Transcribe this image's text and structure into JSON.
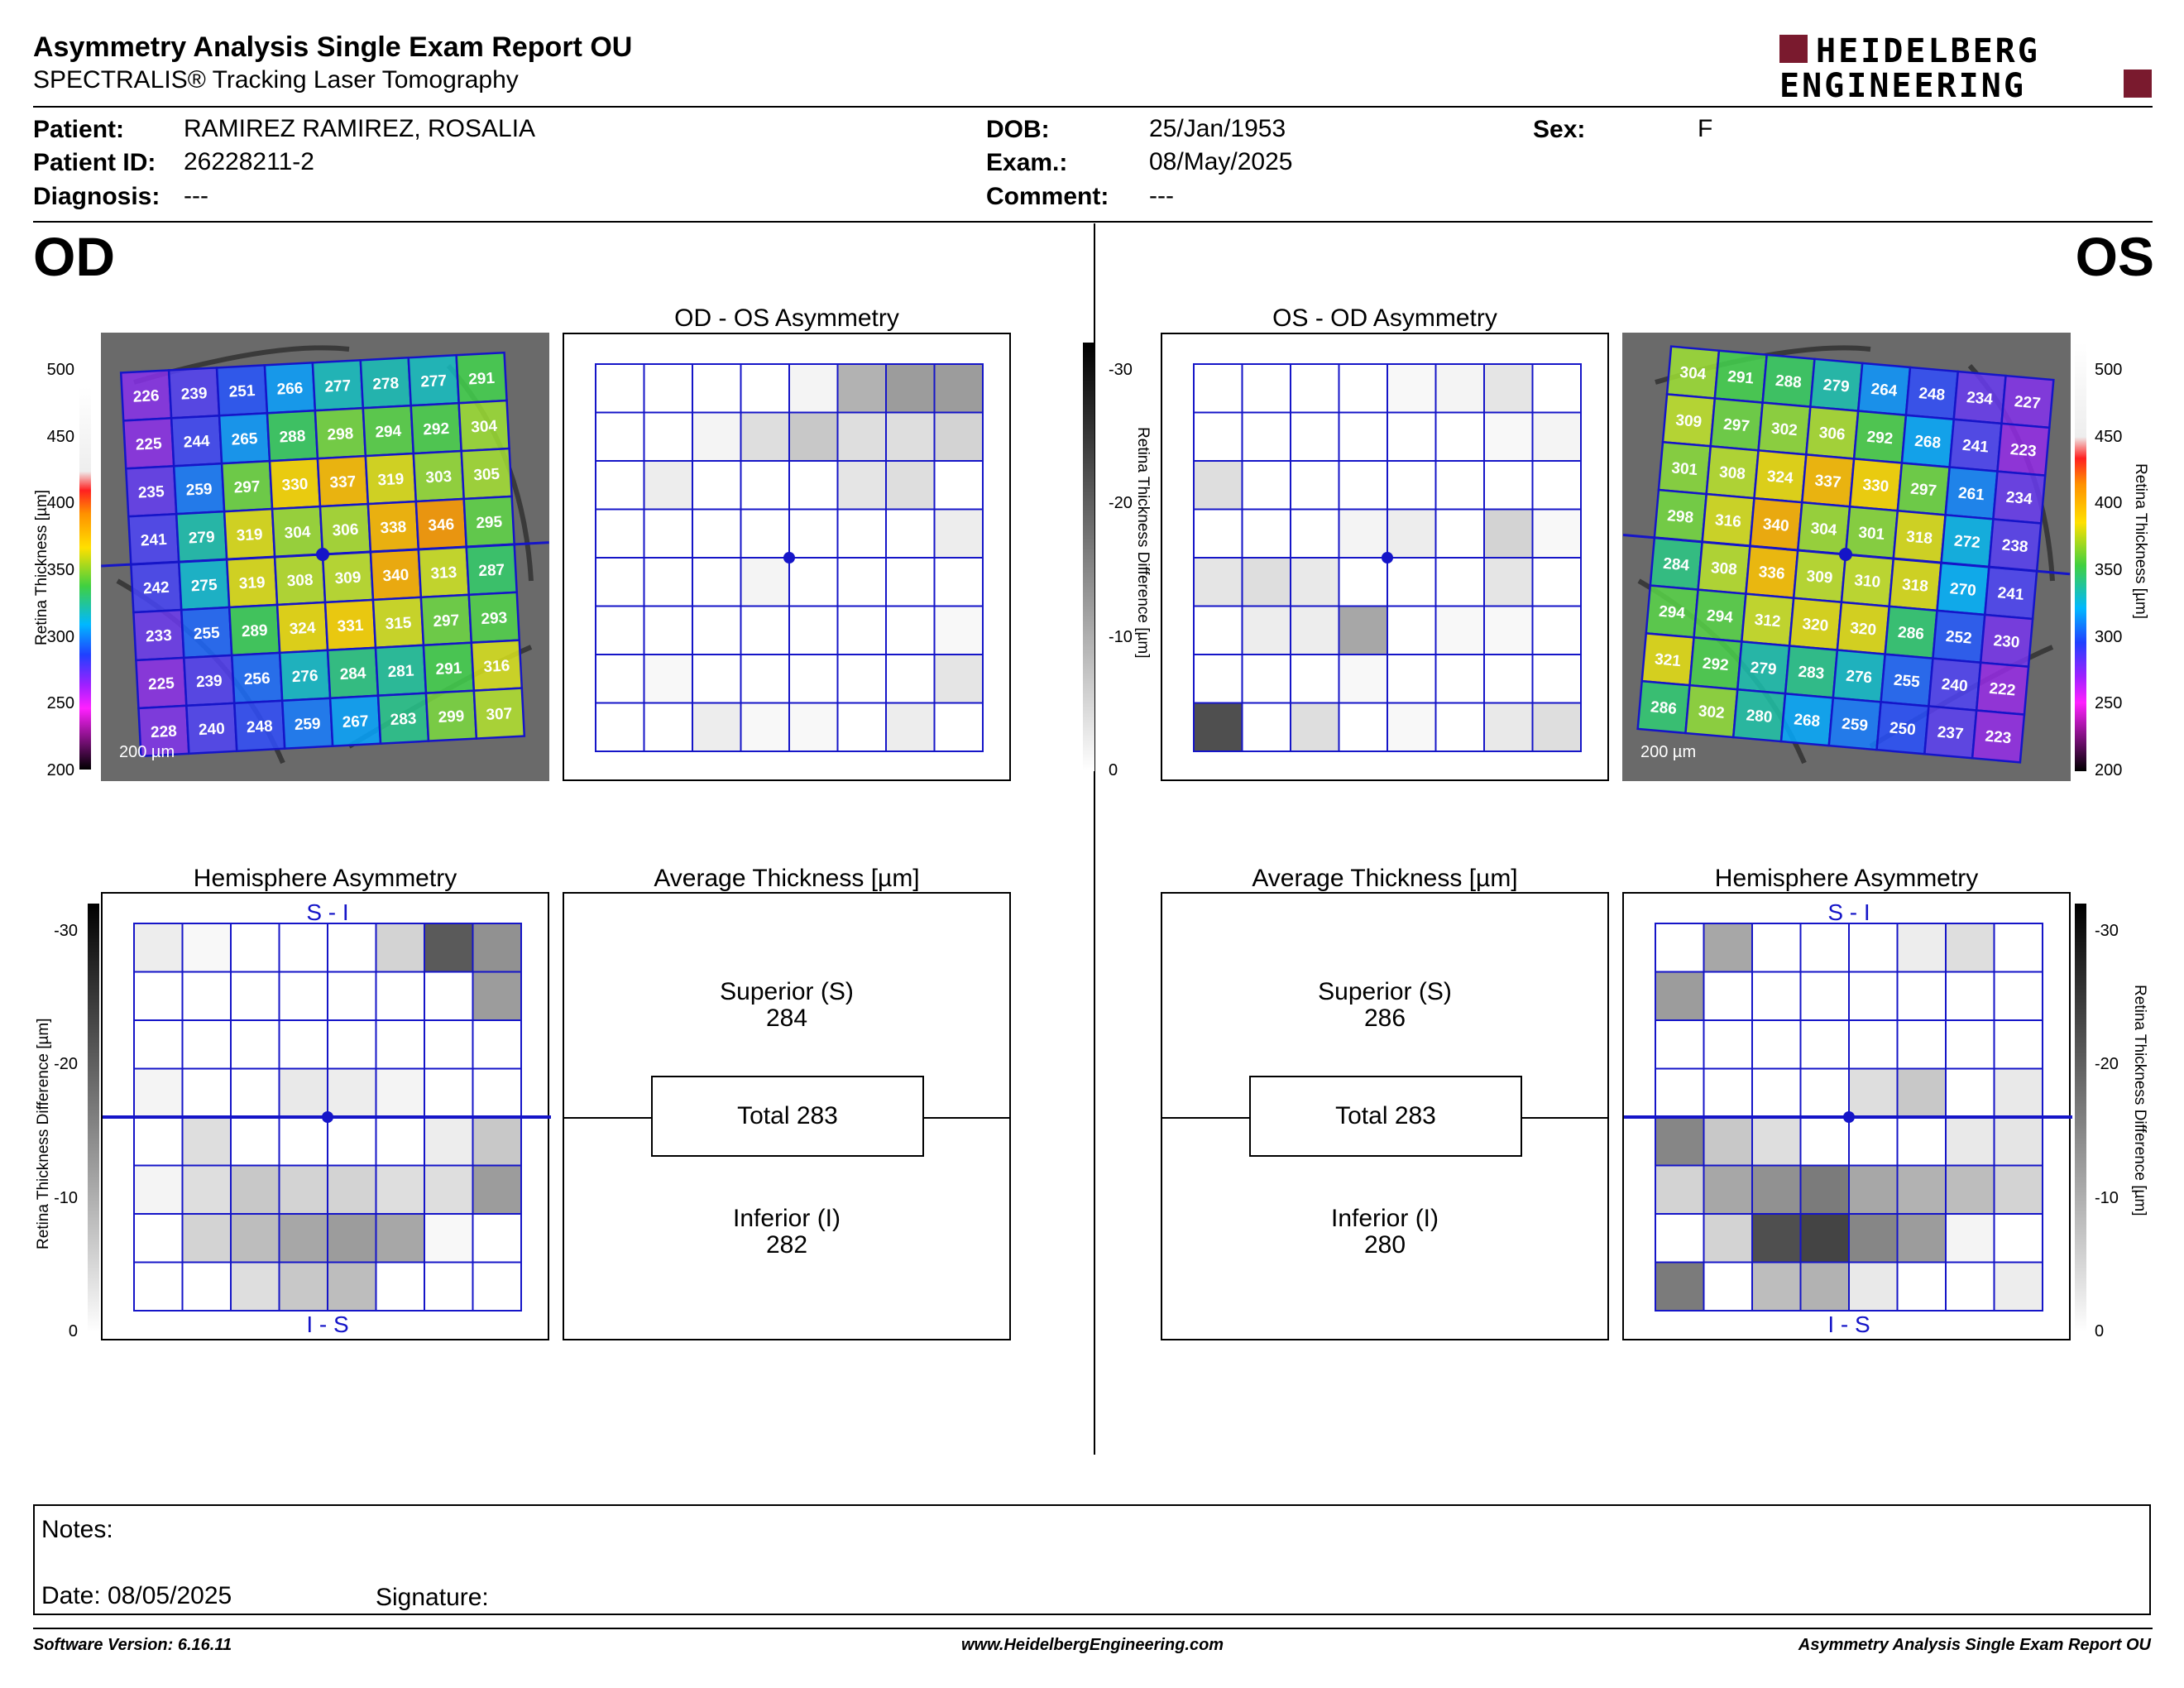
{
  "header": {
    "title": "Asymmetry Analysis Single Exam Report OU",
    "subtitle": "SPECTRALIS® Tracking Laser Tomography",
    "logo_line1": "HEIDELBERG",
    "logo_line2": "ENGINEERING"
  },
  "patient": {
    "patient_label": "Patient:",
    "patient_value": "RAMIREZ RAMIREZ, ROSALIA",
    "id_label": "Patient ID:",
    "id_value": "26228211-2",
    "diagnosis_label": "Diagnosis:",
    "diagnosis_value": "---",
    "dob_label": "DOB:",
    "dob_value": "25/Jan/1953",
    "exam_label": "Exam.:",
    "exam_value": "08/May/2025",
    "comment_label": "Comment:",
    "comment_value": "---",
    "sex_label": "Sex:",
    "sex_value": "F"
  },
  "eyes": {
    "left": "OD",
    "right": "OS"
  },
  "titles": {
    "od_os": "OD - OS Asymmetry",
    "os_od": "OS - OD Asymmetry",
    "hemi": "Hemisphere Asymmetry",
    "avg": "Average Thickness [µm]",
    "si": "S - I",
    "is": "I - S",
    "scale": "200 µm"
  },
  "axes": {
    "thickness_label": "Retina  Thickness [µm]",
    "diff_label": "Retina Thickness Difference [µm]",
    "thickness_ticks": [
      "500",
      "450",
      "400",
      "350",
      "300",
      "250",
      "200"
    ],
    "diff_ticks": [
      "-30",
      "-20",
      "-10",
      "0"
    ]
  },
  "od": {
    "thickness": [
      [
        226,
        239,
        251,
        266,
        277,
        278,
        277,
        291
      ],
      [
        225,
        244,
        265,
        288,
        298,
        294,
        292,
        304
      ],
      [
        235,
        259,
        297,
        330,
        337,
        319,
        303,
        305
      ],
      [
        241,
        279,
        319,
        304,
        306,
        338,
        346,
        295
      ],
      [
        242,
        275,
        319,
        308,
        309,
        340,
        313,
        287
      ],
      [
        233,
        255,
        289,
        324,
        331,
        315,
        297,
        293
      ],
      [
        225,
        239,
        256,
        276,
        284,
        281,
        291,
        316
      ],
      [
        228,
        240,
        248,
        259,
        267,
        283,
        299,
        307
      ]
    ],
    "asym_shades": [
      [
        0,
        0,
        0,
        0,
        0.05,
        0.35,
        0.45,
        0.45
      ],
      [
        0,
        0,
        0.05,
        0.15,
        0.25,
        0.15,
        0.15,
        0.2
      ],
      [
        0,
        0.08,
        0,
        0,
        0,
        0.12,
        0.15,
        0
      ],
      [
        0,
        0,
        0,
        0,
        0,
        0,
        0,
        0.08
      ],
      [
        0,
        0,
        0,
        0.05,
        0,
        0,
        0,
        0
      ],
      [
        0,
        0,
        0,
        0,
        0,
        0,
        0,
        0.03
      ],
      [
        0,
        0.03,
        0,
        0,
        0,
        0,
        0,
        0.12
      ],
      [
        0,
        0,
        0.08,
        0.03,
        0.03,
        0,
        0.08,
        0
      ]
    ],
    "hemi_shades": [
      [
        0.08,
        0.03,
        0,
        0,
        0,
        0.2,
        0.75,
        0.5
      ],
      [
        0,
        0,
        0,
        0,
        0,
        0,
        0,
        0.45
      ],
      [
        0,
        0,
        0,
        0,
        0,
        0,
        0,
        0
      ],
      [
        0.05,
        0,
        0,
        0.1,
        0.08,
        0.05,
        0,
        0
      ],
      [
        0,
        0.15,
        0,
        0,
        0,
        0,
        0.08,
        0.25
      ],
      [
        0.05,
        0.15,
        0.25,
        0.2,
        0.2,
        0.15,
        0.15,
        0.45
      ],
      [
        0,
        0.2,
        0.3,
        0.4,
        0.45,
        0.4,
        0.03,
        0
      ],
      [
        0,
        0,
        0.15,
        0.25,
        0.3,
        0,
        0,
        0
      ]
    ],
    "superior_label": "Superior (S)",
    "superior": "284",
    "total_label": "Total 283",
    "inferior_label": "Inferior (I)",
    "inferior": "282"
  },
  "os": {
    "thickness": [
      [
        304,
        291,
        288,
        279,
        264,
        248,
        234,
        227
      ],
      [
        309,
        297,
        302,
        306,
        292,
        268,
        241,
        223
      ],
      [
        301,
        308,
        324,
        337,
        330,
        297,
        261,
        234
      ],
      [
        298,
        316,
        340,
        304,
        301,
        318,
        272,
        238
      ],
      [
        284,
        308,
        336,
        309,
        310,
        318,
        270,
        241
      ],
      [
        294,
        294,
        312,
        320,
        320,
        286,
        252,
        230
      ],
      [
        321,
        292,
        279,
        283,
        276,
        255,
        240,
        222
      ],
      [
        286,
        302,
        280,
        268,
        259,
        250,
        237,
        223
      ]
    ],
    "asym_shades": [
      [
        0,
        0,
        0,
        0,
        0.03,
        0.05,
        0.12,
        0
      ],
      [
        0,
        0,
        0,
        0,
        0,
        0,
        0.03,
        0.05
      ],
      [
        0.15,
        0,
        0,
        0,
        0,
        0,
        0,
        0
      ],
      [
        0,
        0,
        0,
        0.05,
        0.08,
        0,
        0.2,
        0.03
      ],
      [
        0.12,
        0.15,
        0.1,
        0,
        0,
        0,
        0.12,
        0
      ],
      [
        0,
        0.08,
        0.08,
        0.4,
        0,
        0.03,
        0.03,
        0
      ],
      [
        0,
        0,
        0,
        0.03,
        0,
        0,
        0,
        0
      ],
      [
        0.8,
        0,
        0.15,
        0,
        0.03,
        0,
        0.1,
        0.15
      ]
    ],
    "hemi_shades": [
      [
        0,
        0.4,
        0,
        0,
        0,
        0.08,
        0.15,
        0
      ],
      [
        0.45,
        0,
        0,
        0,
        0,
        0,
        0,
        0
      ],
      [
        0,
        0,
        0,
        0,
        0,
        0,
        0,
        0
      ],
      [
        0,
        0,
        0,
        0,
        0.15,
        0.25,
        0,
        0.1
      ],
      [
        0.55,
        0.25,
        0.15,
        0,
        0,
        0,
        0.1,
        0.12
      ],
      [
        0.2,
        0.4,
        0.5,
        0.6,
        0.4,
        0.35,
        0.3,
        0.2
      ],
      [
        0,
        0.2,
        0.8,
        0.85,
        0.55,
        0.45,
        0.05,
        0
      ],
      [
        0.6,
        0,
        0.3,
        0.35,
        0.1,
        0,
        0,
        0.08
      ]
    ],
    "superior_label": "Superior (S)",
    "superior": "286",
    "total_label": "Total 283",
    "inferior_label": "Inferior (I)",
    "inferior": "280"
  },
  "notes": {
    "notes_label": "Notes:",
    "date_label": "Date: 08/05/2025",
    "signature_label": "Signature:"
  },
  "footer": {
    "software": "Software Version: 6.16.11",
    "website": "www.HeidelbergEngineering.com",
    "report": "Asymmetry Analysis Single Exam Report OU"
  },
  "colors": {
    "grid_blue": "#1515c8",
    "logo_red": "#7a1a2e"
  }
}
